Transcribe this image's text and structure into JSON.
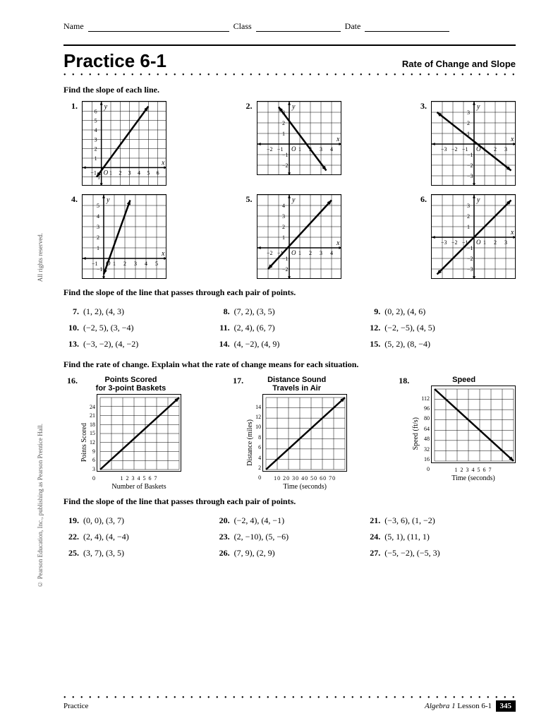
{
  "header": {
    "name": "Name",
    "class": "Class",
    "date": "Date"
  },
  "title": "Practice 6-1",
  "subtitle": "Rate of Change and Slope",
  "section1": "Find the slope of each line.",
  "section2": "Find the slope of the line that passes through each pair of points.",
  "section3": "Find the rate of change. Explain what the rate of change means for each situation.",
  "section4": "Find the slope of the line that passes through each pair of points.",
  "graphs1": [
    {
      "num": "1.",
      "xrange": [
        -1,
        6
      ],
      "yrange": [
        -1,
        6
      ],
      "line": [
        [
          -0.5,
          -1
        ],
        [
          5,
          6.5
        ]
      ],
      "axislabel_x": "x",
      "axislabel_y": "y"
    },
    {
      "num": "2.",
      "xrange": [
        -2,
        4
      ],
      "yrange": [
        -2,
        3
      ],
      "line": [
        [
          -1,
          3.5
        ],
        [
          3.5,
          -2.5
        ]
      ],
      "axislabel_x": "x",
      "axislabel_y": "y"
    },
    {
      "num": "3.",
      "xrange": [
        -3,
        3
      ],
      "yrange": [
        -3,
        3
      ],
      "line": [
        [
          -3.5,
          3
        ],
        [
          3.5,
          -2.5
        ]
      ],
      "axislabel_x": "x",
      "axislabel_y": "y"
    }
  ],
  "graphs2": [
    {
      "num": "4.",
      "xrange": [
        -1,
        5
      ],
      "yrange": [
        -1,
        5
      ],
      "line": [
        [
          0,
          -1.5
        ],
        [
          2.5,
          5.5
        ]
      ],
      "axislabel_x": "x",
      "axislabel_y": "y"
    },
    {
      "num": "5.",
      "xrange": [
        -2,
        4
      ],
      "yrange": [
        -2,
        4
      ],
      "line": [
        [
          -2,
          -2
        ],
        [
          4,
          4.5
        ]
      ],
      "axislabel_x": "x",
      "axislabel_y": "y"
    },
    {
      "num": "6.",
      "xrange": [
        -3,
        3
      ],
      "yrange": [
        -3,
        3
      ],
      "line": [
        [
          -3.5,
          -3.5
        ],
        [
          3.5,
          3.5
        ]
      ],
      "axislabel_x": "x",
      "axislabel_y": "y"
    }
  ],
  "points1": [
    {
      "num": "7.",
      "text": "(1, 2), (4, 3)"
    },
    {
      "num": "8.",
      "text": "(7, 2), (3, 5)"
    },
    {
      "num": "9.",
      "text": "(0, 2), (4, 6)"
    },
    {
      "num": "10.",
      "text": "(−2, 5), (3, −4)"
    },
    {
      "num": "11.",
      "text": "(2, 4), (6, 7)"
    },
    {
      "num": "12.",
      "text": "(−2, −5), (4, 5)"
    },
    {
      "num": "13.",
      "text": "(−3, −2), (4, −2)"
    },
    {
      "num": "14.",
      "text": "(4, −2), (4, 9)"
    },
    {
      "num": "15.",
      "text": "(5, 2), (8, −4)"
    }
  ],
  "charts": [
    {
      "num": "16.",
      "title": "Points Scored for 3-point Baskets",
      "ylabel": "Points Scored",
      "xlabel": "Number of Baskets",
      "xticks": "1 2 3 4 5 6 7",
      "yticks": [
        "24",
        "21",
        "18",
        "15",
        "12",
        "9",
        "6",
        "3",
        "0"
      ],
      "line": [
        [
          0,
          0
        ],
        [
          1,
          1
        ]
      ]
    },
    {
      "num": "17.",
      "title": "Distance Sound Travels in Air",
      "ylabel": "Distance (miles)",
      "xlabel": "Time (seconds)",
      "xticks": "10 20 30 40 50 60 70",
      "yticks": [
        "14",
        "12",
        "10",
        "8",
        "6",
        "4",
        "2",
        "0"
      ],
      "line": [
        [
          0,
          0
        ],
        [
          1,
          1
        ]
      ]
    },
    {
      "num": "18.",
      "title": "Speed",
      "ylabel": "Speed (ft/s)",
      "xlabel": "Time (seconds)",
      "xticks": "1 2 3 4 5 6 7",
      "yticks": [
        "112",
        "96",
        "80",
        "64",
        "48",
        "32",
        "16",
        "0"
      ],
      "line": [
        [
          0,
          1
        ],
        [
          1,
          0
        ]
      ]
    }
  ],
  "points2": [
    {
      "num": "19.",
      "text": "(0, 0), (3, 7)"
    },
    {
      "num": "20.",
      "text": "(−2, 4), (4, −1)"
    },
    {
      "num": "21.",
      "text": "(−3, 6), (1, −2)"
    },
    {
      "num": "22.",
      "text": "(2, 4), (4, −4)"
    },
    {
      "num": "23.",
      "text": "(2, −10), (5, −6)"
    },
    {
      "num": "24.",
      "text": "(5, 1), (11, 1)"
    },
    {
      "num": "25.",
      "text": "(3, 7), (3, 5)"
    },
    {
      "num": "26.",
      "text": "(7, 9), (2, 9)"
    },
    {
      "num": "27.",
      "text": "(−5, −2), (−5, 3)"
    }
  ],
  "footer": {
    "left": "Practice",
    "right_italic": "Algebra 1",
    "right": " Lesson 6-1",
    "page": "345"
  },
  "side1": "All rights reserved.",
  "side2": "© Pearson Education, Inc., publishing as Pearson Prentice Hall.",
  "style": {
    "grid_size": 130,
    "grid_stroke": "#000",
    "line_stroke": "#000",
    "line_width": 2.5,
    "arrow_size": 6
  }
}
